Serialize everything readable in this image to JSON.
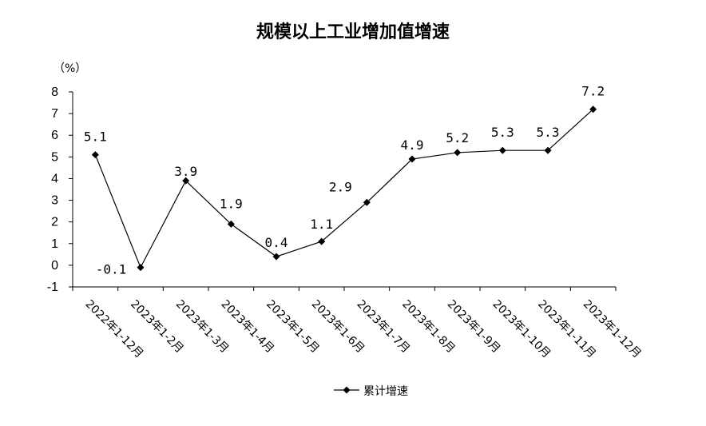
{
  "chart_data": {
    "type": "line",
    "title": "规模以上工业增加值增速",
    "ylabel": "（%）",
    "xlabel": "",
    "ylim": [
      -1,
      8
    ],
    "yticks": [
      -1,
      0,
      1,
      2,
      3,
      4,
      5,
      6,
      7,
      8
    ],
    "grid": false,
    "legend_position": "bottom-center",
    "categories": [
      "2022年1-12月",
      "2023年1-2月",
      "2023年1-3月",
      "2023年1-4月",
      "2023年1-5月",
      "2023年1-6月",
      "2023年1-7月",
      "2023年1-8月",
      "2023年1-9月",
      "2023年1-10月",
      "2023年1-11月",
      "2023年1-12月"
    ],
    "series": [
      {
        "name": "累计增速",
        "values": [
          5.1,
          -0.1,
          3.9,
          1.9,
          0.4,
          1.1,
          2.9,
          4.9,
          5.2,
          5.3,
          5.3,
          7.2
        ],
        "labels": [
          "5.1",
          "-0.1",
          "3.9",
          "1.9",
          "0.4",
          "1.1",
          "2.9",
          "4.9",
          "5.2",
          "5.3",
          "5.3",
          "7.2"
        ],
        "color": "#000000",
        "marker": "diamond"
      }
    ]
  }
}
